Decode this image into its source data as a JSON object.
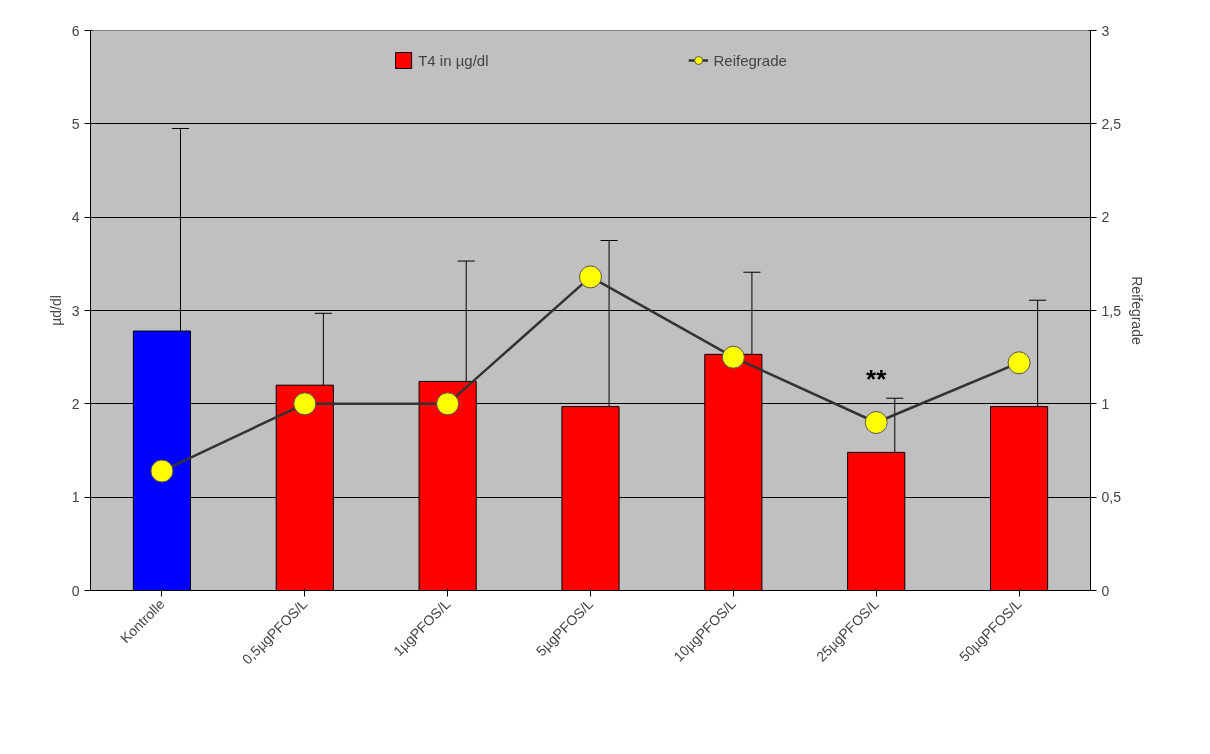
{
  "chart_data": {
    "type": "bar",
    "ylabel": "µd/dl",
    "y2label": "Reifegrade",
    "categories": [
      "Kontrolle",
      "0,5µgPFOS/L",
      "1µgPFOS/L",
      "5µgPFOS/L",
      "10µgPFOS/L",
      "25µgPFOS/L",
      "50µgPFOS/L"
    ],
    "series": [
      {
        "name": "T4 in µg/dl",
        "colors": [
          "#0000ff",
          "#ff0000",
          "#ff0000",
          "#ff0000",
          "#ff0000",
          "#ff0000",
          "#ff0000"
        ],
        "values": [
          2.78,
          2.2,
          2.24,
          1.97,
          2.53,
          1.48,
          1.97
        ],
        "errors": [
          [
            2.78,
            4.95
          ],
          [
            2.2,
            2.97
          ],
          [
            2.24,
            3.53
          ],
          [
            1.97,
            3.75
          ],
          [
            2.53,
            3.41
          ],
          [
            1.48,
            2.06
          ],
          [
            1.97,
            3.11
          ]
        ]
      },
      {
        "name": "Reifegrade",
        "type": "line",
        "axis": "y2",
        "color": "#ffff00",
        "marker": "circle",
        "values": [
          0.64,
          1.0,
          1.0,
          1.68,
          1.25,
          0.9,
          1.22
        ]
      }
    ],
    "ylim": [
      0,
      6
    ],
    "yticks": [
      0,
      1,
      2,
      3,
      4,
      5,
      6
    ],
    "y2lim": [
      0,
      3
    ],
    "y2ticks": [
      0,
      {
        "value": 0.5,
        "label": "0,5"
      },
      1,
      {
        "value": 1.5,
        "label": "1,5"
      },
      2,
      {
        "value": 2.5,
        "label": "2,5"
      },
      3
    ],
    "annotations": [
      "**"
    ],
    "grid": "y",
    "legend": "top"
  }
}
